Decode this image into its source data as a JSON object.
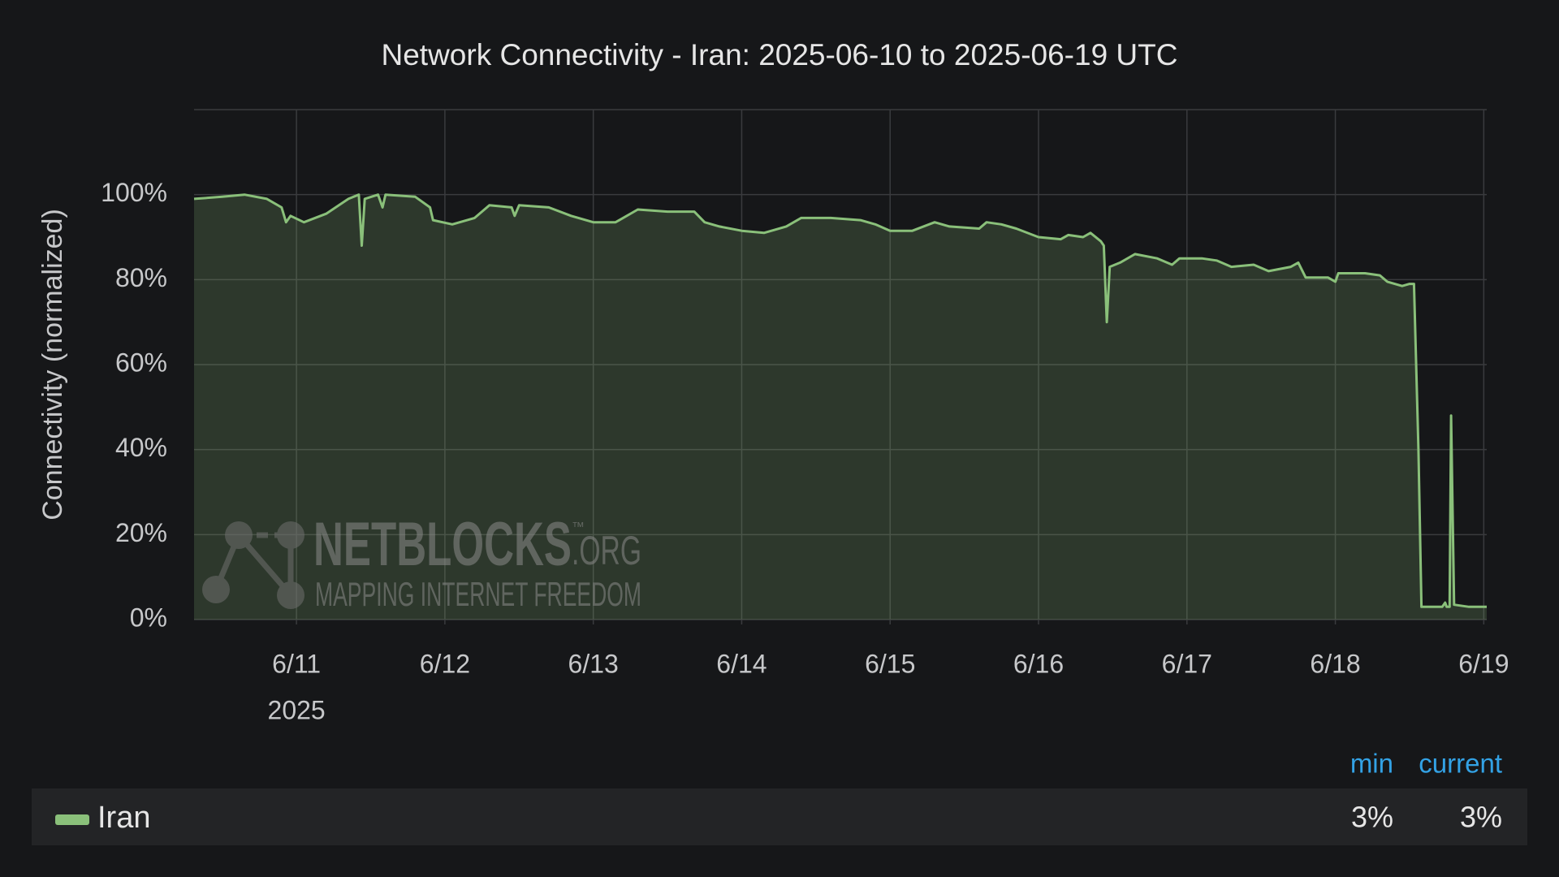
{
  "chart_data": {
    "type": "line",
    "title": "Network Connectivity - Iran: 2025-06-10 to 2025-06-19 UTC",
    "y_label": "Connectivity (normalized)",
    "x_sub_label": "2025",
    "watermark": {
      "name": "NETBLOCKS",
      "tm": "™",
      "suffix": ".ORG",
      "tagline": "MAPPING INTERNET FREEDOM"
    },
    "xlim": [
      10.31,
      19.02
    ],
    "xticks": [
      {
        "value": 11,
        "label": "6/11"
      },
      {
        "value": 12,
        "label": "6/12"
      },
      {
        "value": 13,
        "label": "6/13"
      },
      {
        "value": 14,
        "label": "6/14"
      },
      {
        "value": 15,
        "label": "6/15"
      },
      {
        "value": 16,
        "label": "6/16"
      },
      {
        "value": 17,
        "label": "6/17"
      },
      {
        "value": 18,
        "label": "6/18"
      },
      {
        "value": 19,
        "label": "6/19"
      }
    ],
    "ylim": [
      0,
      120
    ],
    "yticks": [
      {
        "value": 0,
        "label": "0%"
      },
      {
        "value": 20,
        "label": "20%"
      },
      {
        "value": 40,
        "label": "40%"
      },
      {
        "value": 60,
        "label": "60%"
      },
      {
        "value": 80,
        "label": "80%"
      },
      {
        "value": 100,
        "label": "100%"
      }
    ],
    "grid": true,
    "x": [
      10.31,
      10.5,
      10.65,
      10.8,
      10.9,
      10.93,
      10.96,
      11.05,
      11.2,
      11.35,
      11.42,
      11.44,
      11.46,
      11.55,
      11.58,
      11.6,
      11.8,
      11.9,
      11.92,
      12.05,
      12.2,
      12.3,
      12.45,
      12.47,
      12.5,
      12.7,
      12.85,
      13.0,
      13.15,
      13.3,
      13.5,
      13.68,
      13.75,
      13.85,
      14.0,
      14.15,
      14.3,
      14.4,
      14.6,
      14.8,
      14.9,
      15.0,
      15.15,
      15.3,
      15.4,
      15.6,
      15.65,
      15.75,
      15.85,
      16.0,
      16.15,
      16.2,
      16.3,
      16.35,
      16.42,
      16.44,
      16.46,
      16.48,
      16.55,
      16.65,
      16.8,
      16.9,
      16.95,
      17.1,
      17.2,
      17.3,
      17.45,
      17.55,
      17.7,
      17.75,
      17.8,
      17.95,
      18.0,
      18.02,
      18.2,
      18.3,
      18.35,
      18.45,
      18.5,
      18.53,
      18.56,
      18.58,
      18.72,
      18.74,
      18.75,
      18.77,
      18.78,
      18.8,
      18.9,
      19.02
    ],
    "series": [
      {
        "name": "Iran",
        "color": "#8ac07a",
        "values": [
          99,
          99.5,
          100,
          99,
          97,
          93.5,
          95,
          93.5,
          95.5,
          99,
          100,
          88,
          99,
          100,
          97,
          100,
          99.5,
          97,
          94,
          93,
          94.5,
          97.5,
          97,
          95,
          97.5,
          97,
          95,
          93.5,
          93.5,
          96.5,
          96,
          96,
          93.5,
          92.5,
          91.5,
          91,
          92.5,
          94.5,
          94.5,
          94,
          93,
          91.5,
          91.5,
          93.5,
          92.5,
          92,
          93.5,
          93,
          92,
          90,
          89.5,
          90.5,
          90,
          91,
          89,
          88,
          70,
          83,
          84,
          86,
          85,
          83.5,
          85,
          85,
          84.5,
          83,
          83.5,
          82,
          83,
          84,
          80.5,
          80.5,
          79.5,
          81.5,
          81.5,
          81,
          79.5,
          78.5,
          79,
          79,
          40,
          3,
          3,
          4,
          3,
          3,
          48,
          3.5,
          3,
          3
        ]
      }
    ],
    "stats": {
      "columns": [
        "min",
        "current"
      ],
      "values": [
        3,
        3
      ],
      "value_labels": [
        "3%",
        "3%"
      ]
    }
  }
}
